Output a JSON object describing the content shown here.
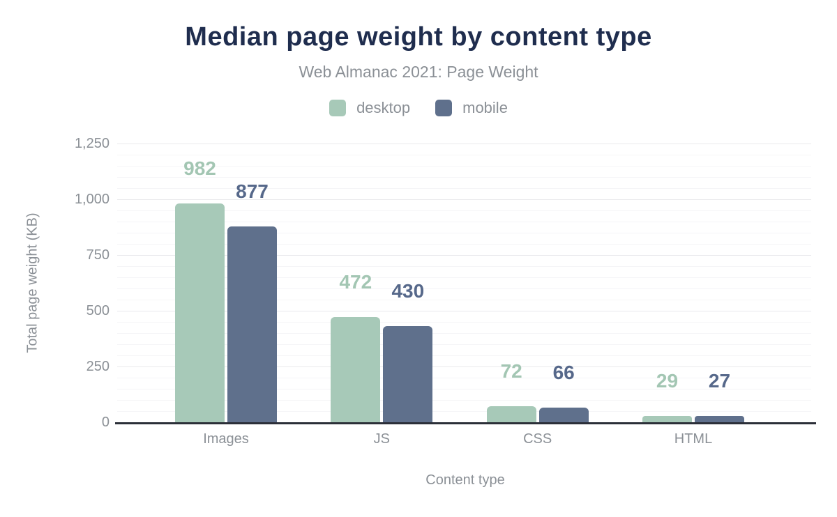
{
  "header": {
    "title": "Median page weight by content type",
    "subtitle": "Web Almanac 2021: Page Weight"
  },
  "legend": {
    "items": [
      {
        "label": "desktop",
        "color": "#a7c9b8"
      },
      {
        "label": "mobile",
        "color": "#5f708c"
      }
    ]
  },
  "colors": {
    "title": "#1f2d4e",
    "muted_text": "#8b9096",
    "axis_line": "#2b2f38",
    "major_gridline": "#e9e9ec",
    "minor_gridline": "#f5f5f7",
    "desktop": "#a7c9b8",
    "mobile": "#5f708c"
  },
  "chart_data": {
    "type": "bar",
    "title": "Median page weight by content type",
    "subtitle": "Web Almanac 2021: Page Weight",
    "categories": [
      "Images",
      "JS",
      "CSS",
      "HTML"
    ],
    "series": [
      {
        "name": "desktop",
        "color": "#a7c9b8",
        "label_color": "#a3c6b3",
        "values": [
          982,
          472,
          72,
          29
        ]
      },
      {
        "name": "mobile",
        "color": "#5f708c",
        "label_color": "#56688a",
        "values": [
          877,
          430,
          66,
          27
        ]
      }
    ],
    "xlabel": "Content type",
    "ylabel": "Total page weight (KB)",
    "ylim": [
      0,
      1250
    ],
    "ytick_step": 250,
    "minor_grid_step": 50,
    "ytick_labels": [
      "0",
      "250",
      "500",
      "750",
      "1,000",
      "1,250"
    ],
    "grid": true,
    "legend_position": "top",
    "data_labels": true
  }
}
